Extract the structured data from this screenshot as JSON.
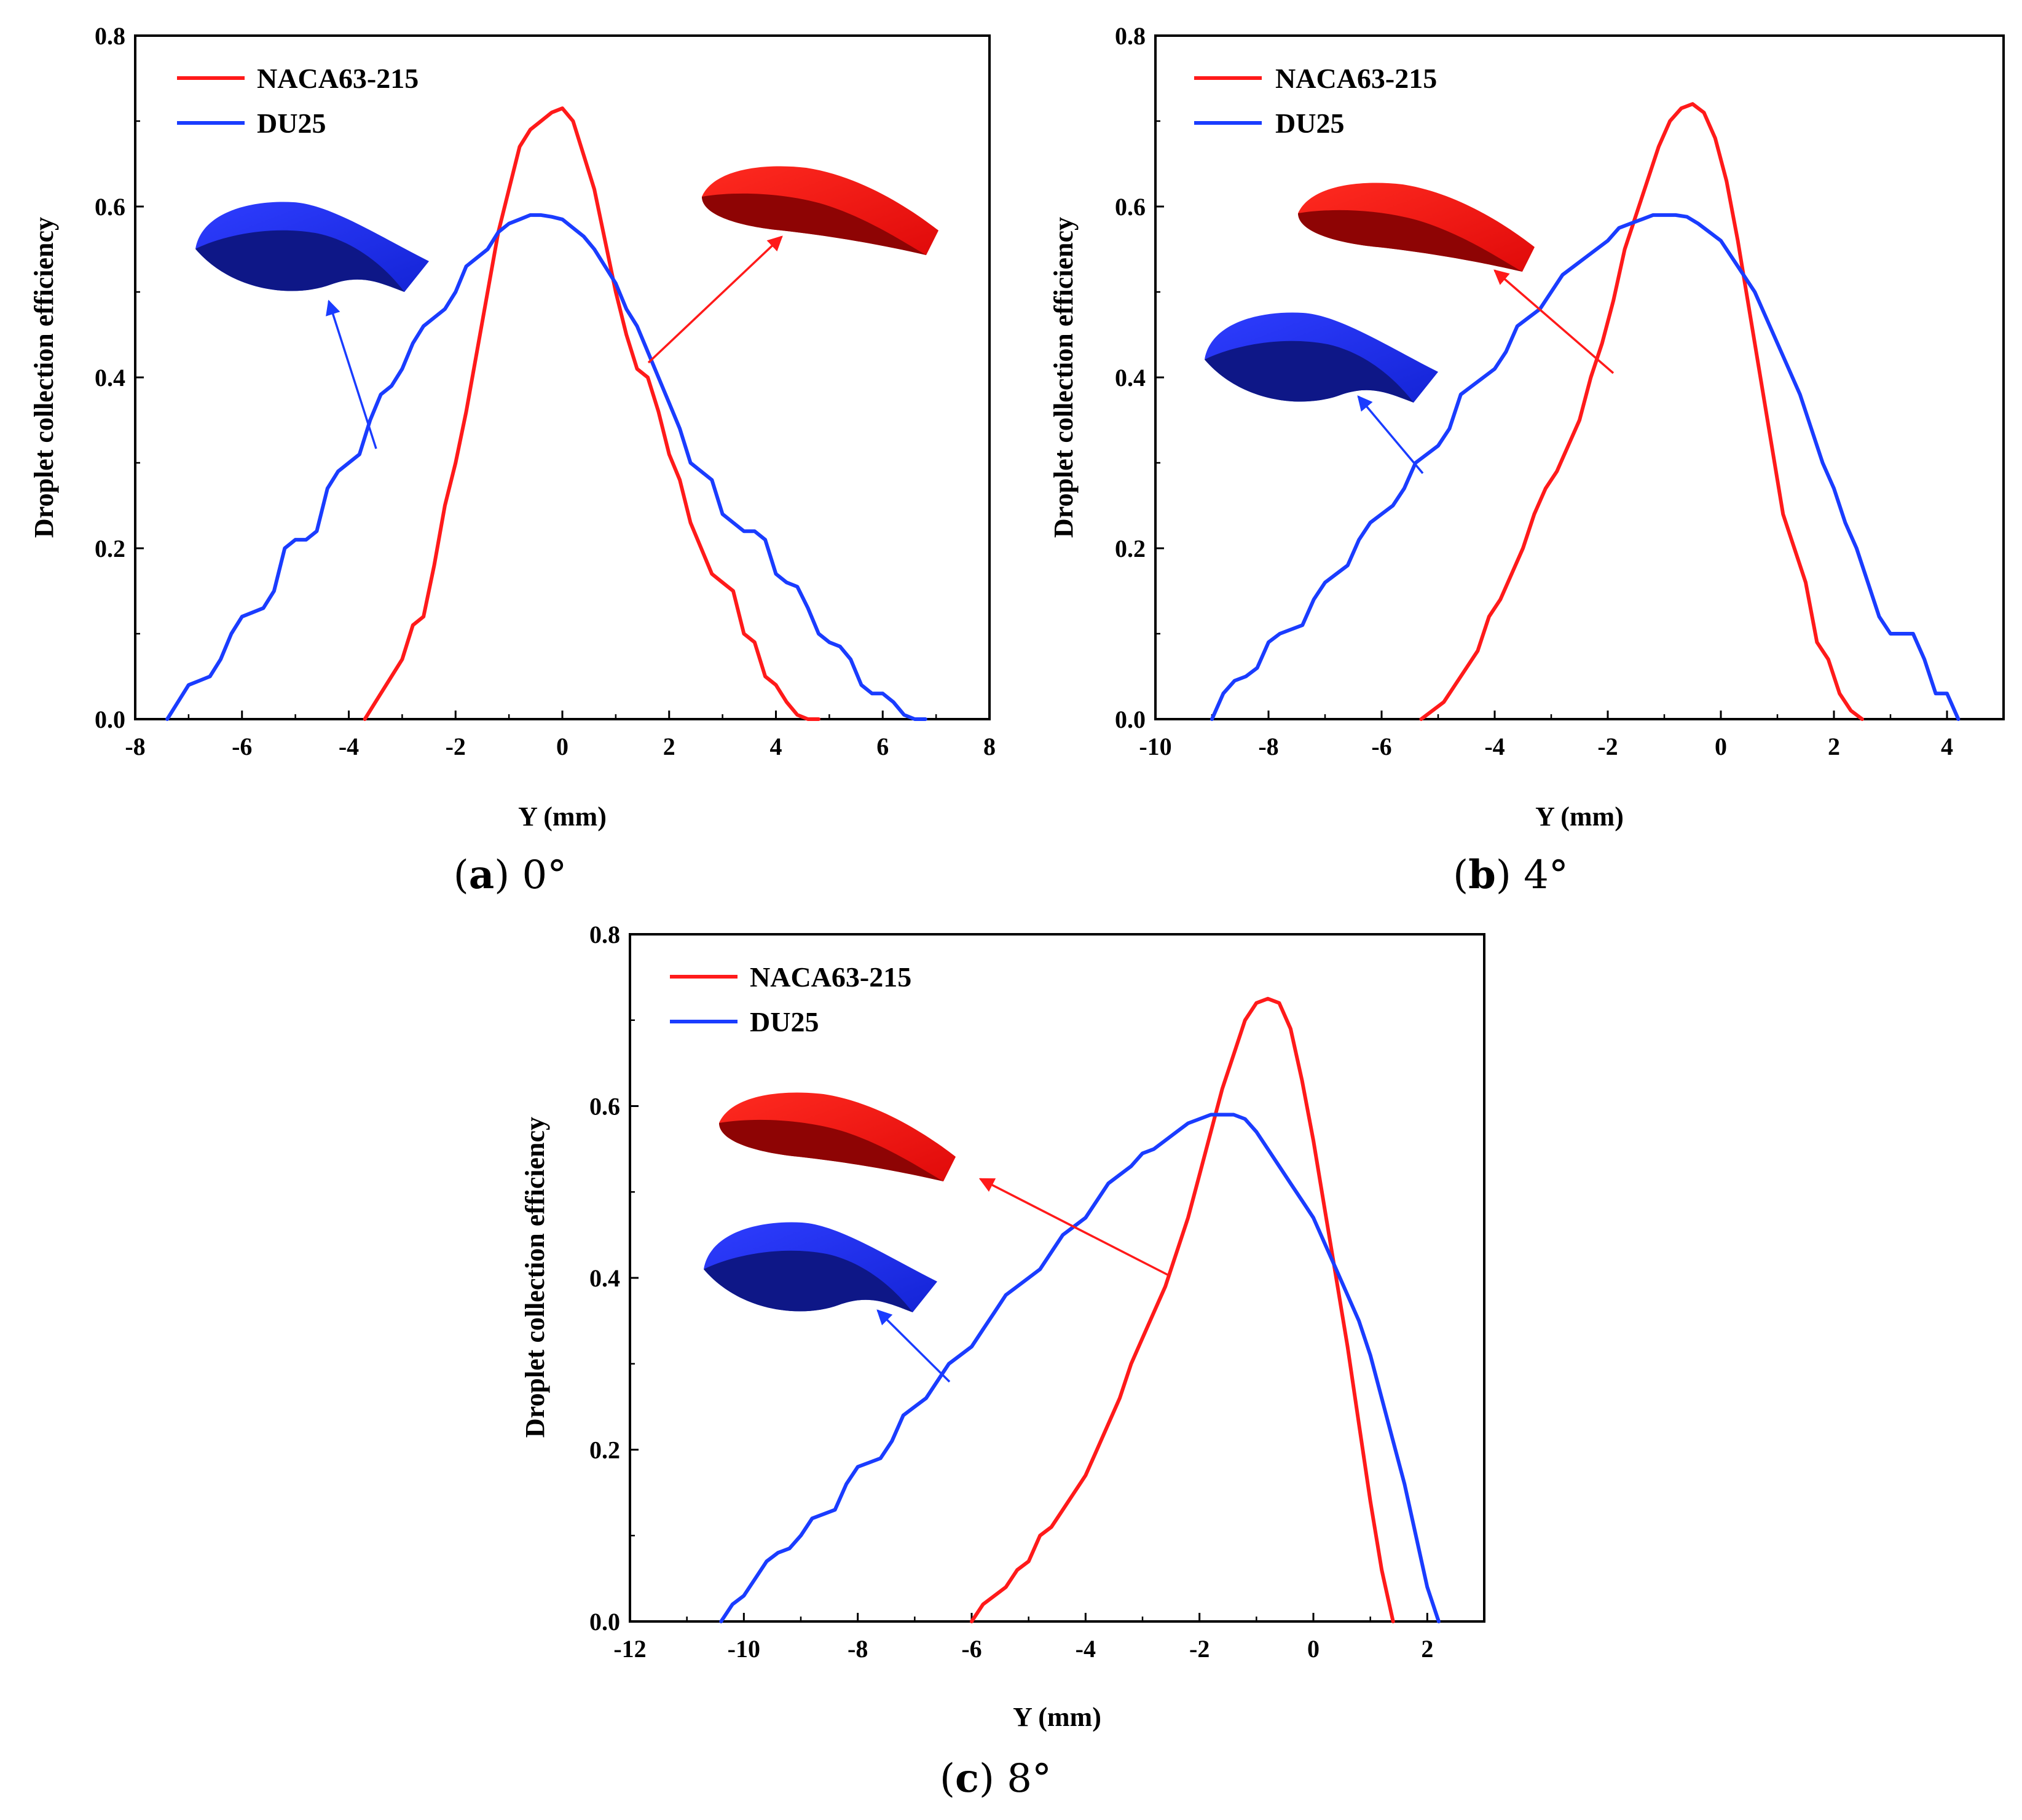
{
  "chart_data": [
    {
      "type": "line",
      "panel": "a",
      "caption_letter": "a",
      "caption_angle": "0°",
      "xlabel": "Y (mm)",
      "ylabel": "Droplet collection efficiency",
      "xlim": [
        -8,
        8
      ],
      "ylim": [
        0,
        0.8
      ],
      "xticks": [
        "-8",
        "-6",
        "-4",
        "-2",
        "0",
        "2",
        "4",
        "6",
        "8"
      ],
      "yticks": [
        "0.0",
        "0.2",
        "0.4",
        "0.6",
        "0.8"
      ],
      "legend_position": "top-left",
      "series": [
        {
          "name": "NACA63-215",
          "color": "#ff1a1a",
          "x": [
            -3.7,
            -3.5,
            -3.2,
            -3.0,
            -2.8,
            -2.6,
            -2.4,
            -2.2,
            -2.0,
            -1.8,
            -1.6,
            -1.4,
            -1.2,
            -1.0,
            -0.8,
            -0.6,
            -0.4,
            -0.2,
            0.0,
            0.2,
            0.4,
            0.6,
            0.8,
            1.0,
            1.2,
            1.4,
            1.6,
            1.8,
            2.0,
            2.2,
            2.4,
            2.6,
            2.8,
            3.0,
            3.2,
            3.4,
            3.6,
            3.8,
            4.0,
            4.2,
            4.4,
            4.6,
            4.8
          ],
          "y": [
            0.0,
            0.02,
            0.05,
            0.07,
            0.11,
            0.12,
            0.18,
            0.25,
            0.3,
            0.36,
            0.43,
            0.5,
            0.57,
            0.62,
            0.67,
            0.69,
            0.7,
            0.71,
            0.715,
            0.7,
            0.66,
            0.62,
            0.56,
            0.5,
            0.45,
            0.41,
            0.4,
            0.36,
            0.31,
            0.28,
            0.23,
            0.2,
            0.17,
            0.16,
            0.15,
            0.1,
            0.09,
            0.05,
            0.04,
            0.02,
            0.005,
            0.0,
            0.0
          ]
        },
        {
          "name": "DU25",
          "color": "#1a3cff",
          "x": [
            -7.4,
            -7.2,
            -7.0,
            -6.8,
            -6.6,
            -6.4,
            -6.2,
            -6.0,
            -5.8,
            -5.6,
            -5.4,
            -5.2,
            -5.0,
            -4.8,
            -4.6,
            -4.4,
            -4.2,
            -4.0,
            -3.8,
            -3.6,
            -3.4,
            -3.2,
            -3.0,
            -2.8,
            -2.6,
            -2.4,
            -2.2,
            -2.0,
            -1.8,
            -1.6,
            -1.4,
            -1.2,
            -1.0,
            -0.8,
            -0.6,
            -0.4,
            -0.2,
            0.0,
            0.2,
            0.4,
            0.6,
            0.8,
            1.0,
            1.2,
            1.4,
            1.6,
            1.8,
            2.0,
            2.2,
            2.4,
            2.6,
            2.8,
            3.0,
            3.2,
            3.4,
            3.6,
            3.8,
            4.0,
            4.2,
            4.4,
            4.6,
            4.8,
            5.0,
            5.2,
            5.4,
            5.6,
            5.8,
            6.0,
            6.2,
            6.4,
            6.6,
            6.8
          ],
          "y": [
            0.0,
            0.02,
            0.04,
            0.045,
            0.05,
            0.07,
            0.1,
            0.12,
            0.125,
            0.13,
            0.15,
            0.2,
            0.21,
            0.21,
            0.22,
            0.27,
            0.29,
            0.3,
            0.31,
            0.35,
            0.38,
            0.39,
            0.41,
            0.44,
            0.46,
            0.47,
            0.48,
            0.5,
            0.53,
            0.54,
            0.55,
            0.57,
            0.58,
            0.585,
            0.59,
            0.59,
            0.588,
            0.585,
            0.575,
            0.565,
            0.55,
            0.53,
            0.51,
            0.48,
            0.46,
            0.43,
            0.4,
            0.37,
            0.34,
            0.3,
            0.29,
            0.28,
            0.24,
            0.23,
            0.22,
            0.22,
            0.21,
            0.17,
            0.16,
            0.155,
            0.13,
            0.1,
            0.09,
            0.085,
            0.07,
            0.04,
            0.03,
            0.03,
            0.02,
            0.005,
            0.0,
            0.0
          ]
        }
      ]
    },
    {
      "type": "line",
      "panel": "b",
      "caption_letter": "b",
      "caption_angle": "4°",
      "xlabel": "Y (mm)",
      "ylabel": "Droplet collection efficiency",
      "xlim": [
        -10,
        5
      ],
      "ylim": [
        0,
        0.8
      ],
      "xticks": [
        "-10",
        "-8",
        "-6",
        "-4",
        "-2",
        "0",
        "2",
        "4"
      ],
      "yticks": [
        "0.0",
        "0.2",
        "0.4",
        "0.6",
        "0.8"
      ],
      "legend_position": "top-left",
      "series": [
        {
          "name": "NACA63-215",
          "color": "#ff1a1a",
          "x": [
            -5.3,
            -5.1,
            -4.9,
            -4.7,
            -4.5,
            -4.3,
            -4.1,
            -3.9,
            -3.7,
            -3.5,
            -3.3,
            -3.1,
            -2.9,
            -2.7,
            -2.5,
            -2.3,
            -2.1,
            -1.9,
            -1.7,
            -1.5,
            -1.3,
            -1.1,
            -0.9,
            -0.7,
            -0.5,
            -0.3,
            -0.1,
            0.1,
            0.3,
            0.5,
            0.7,
            0.9,
            1.1,
            1.3,
            1.5,
            1.7,
            1.9,
            2.1,
            2.3,
            2.5
          ],
          "y": [
            0.0,
            0.01,
            0.02,
            0.04,
            0.06,
            0.08,
            0.12,
            0.14,
            0.17,
            0.2,
            0.24,
            0.27,
            0.29,
            0.32,
            0.35,
            0.4,
            0.44,
            0.49,
            0.55,
            0.59,
            0.63,
            0.67,
            0.7,
            0.715,
            0.72,
            0.71,
            0.68,
            0.63,
            0.56,
            0.48,
            0.4,
            0.32,
            0.24,
            0.2,
            0.16,
            0.09,
            0.07,
            0.03,
            0.01,
            0.0
          ]
        },
        {
          "name": "DU25",
          "color": "#1a3cff",
          "x": [
            -9.0,
            -8.8,
            -8.6,
            -8.4,
            -8.2,
            -8.0,
            -7.8,
            -7.6,
            -7.4,
            -7.2,
            -7.0,
            -6.8,
            -6.6,
            -6.4,
            -6.2,
            -6.0,
            -5.8,
            -5.6,
            -5.4,
            -5.2,
            -5.0,
            -4.8,
            -4.6,
            -4.4,
            -4.2,
            -4.0,
            -3.8,
            -3.6,
            -3.4,
            -3.2,
            -3.0,
            -2.8,
            -2.6,
            -2.4,
            -2.2,
            -2.0,
            -1.8,
            -1.6,
            -1.4,
            -1.2,
            -1.0,
            -0.8,
            -0.6,
            -0.4,
            -0.2,
            0.0,
            0.2,
            0.4,
            0.6,
            0.8,
            1.0,
            1.2,
            1.4,
            1.6,
            1.8,
            2.0,
            2.2,
            2.4,
            2.6,
            2.8,
            3.0,
            3.2,
            3.4,
            3.6,
            3.8,
            4.0,
            4.2
          ],
          "y": [
            0.0,
            0.03,
            0.045,
            0.05,
            0.06,
            0.09,
            0.1,
            0.105,
            0.11,
            0.14,
            0.16,
            0.17,
            0.18,
            0.21,
            0.23,
            0.24,
            0.25,
            0.27,
            0.3,
            0.31,
            0.32,
            0.34,
            0.38,
            0.39,
            0.4,
            0.41,
            0.43,
            0.46,
            0.47,
            0.48,
            0.5,
            0.52,
            0.53,
            0.54,
            0.55,
            0.56,
            0.575,
            0.58,
            0.585,
            0.59,
            0.59,
            0.59,
            0.588,
            0.58,
            0.57,
            0.56,
            0.54,
            0.52,
            0.5,
            0.47,
            0.44,
            0.41,
            0.38,
            0.34,
            0.3,
            0.27,
            0.23,
            0.2,
            0.16,
            0.12,
            0.1,
            0.1,
            0.1,
            0.07,
            0.03,
            0.03,
            0.0
          ]
        }
      ]
    },
    {
      "type": "line",
      "panel": "c",
      "caption_letter": "c",
      "caption_angle": "8°",
      "xlabel": "Y (mm)",
      "ylabel": "Droplet collection efficiency",
      "xlim": [
        -12,
        3
      ],
      "ylim": [
        0,
        0.8
      ],
      "xticks": [
        "-12",
        "-10",
        "-8",
        "-6",
        "-4",
        "-2",
        "0",
        "2"
      ],
      "yticks": [
        "0.0",
        "0.2",
        "0.4",
        "0.6",
        "0.8"
      ],
      "legend_position": "top-left",
      "series": [
        {
          "name": "NACA63-215",
          "color": "#ff1a1a",
          "x": [
            -6.0,
            -5.8,
            -5.6,
            -5.4,
            -5.2,
            -5.0,
            -4.8,
            -4.6,
            -4.4,
            -4.2,
            -4.0,
            -3.8,
            -3.6,
            -3.4,
            -3.2,
            -3.0,
            -2.8,
            -2.6,
            -2.4,
            -2.2,
            -2.0,
            -1.8,
            -1.6,
            -1.4,
            -1.2,
            -1.0,
            -0.8,
            -0.6,
            -0.4,
            -0.2,
            0.0,
            0.2,
            0.4,
            0.6,
            0.8,
            1.0,
            1.2,
            1.4
          ],
          "y": [
            0.0,
            0.02,
            0.03,
            0.04,
            0.06,
            0.07,
            0.1,
            0.11,
            0.13,
            0.15,
            0.17,
            0.2,
            0.23,
            0.26,
            0.3,
            0.33,
            0.36,
            0.39,
            0.43,
            0.47,
            0.52,
            0.57,
            0.62,
            0.66,
            0.7,
            0.72,
            0.725,
            0.72,
            0.69,
            0.63,
            0.56,
            0.48,
            0.4,
            0.32,
            0.23,
            0.14,
            0.06,
            0.0
          ]
        },
        {
          "name": "DU25",
          "color": "#1a3cff",
          "x": [
            -10.4,
            -10.2,
            -10.0,
            -9.8,
            -9.6,
            -9.4,
            -9.2,
            -9.0,
            -8.8,
            -8.6,
            -8.4,
            -8.2,
            -8.0,
            -7.8,
            -7.6,
            -7.4,
            -7.2,
            -7.0,
            -6.8,
            -6.6,
            -6.4,
            -6.2,
            -6.0,
            -5.8,
            -5.6,
            -5.4,
            -5.2,
            -5.0,
            -4.8,
            -4.6,
            -4.4,
            -4.2,
            -4.0,
            -3.8,
            -3.6,
            -3.4,
            -3.2,
            -3.0,
            -2.8,
            -2.6,
            -2.4,
            -2.2,
            -2.0,
            -1.8,
            -1.6,
            -1.4,
            -1.2,
            -1.0,
            -0.8,
            -0.6,
            -0.4,
            -0.2,
            0.0,
            0.2,
            0.4,
            0.6,
            0.8,
            1.0,
            1.2,
            1.4,
            1.6,
            1.8,
            2.0,
            2.2
          ],
          "y": [
            0.0,
            0.02,
            0.03,
            0.05,
            0.07,
            0.08,
            0.085,
            0.1,
            0.12,
            0.125,
            0.13,
            0.16,
            0.18,
            0.185,
            0.19,
            0.21,
            0.24,
            0.25,
            0.26,
            0.28,
            0.3,
            0.31,
            0.32,
            0.34,
            0.36,
            0.38,
            0.39,
            0.4,
            0.41,
            0.43,
            0.45,
            0.46,
            0.47,
            0.49,
            0.51,
            0.52,
            0.53,
            0.545,
            0.55,
            0.56,
            0.57,
            0.58,
            0.585,
            0.59,
            0.59,
            0.59,
            0.585,
            0.57,
            0.55,
            0.53,
            0.51,
            0.49,
            0.47,
            0.44,
            0.41,
            0.38,
            0.35,
            0.31,
            0.26,
            0.21,
            0.16,
            0.1,
            0.04,
            0.0
          ]
        }
      ]
    }
  ]
}
